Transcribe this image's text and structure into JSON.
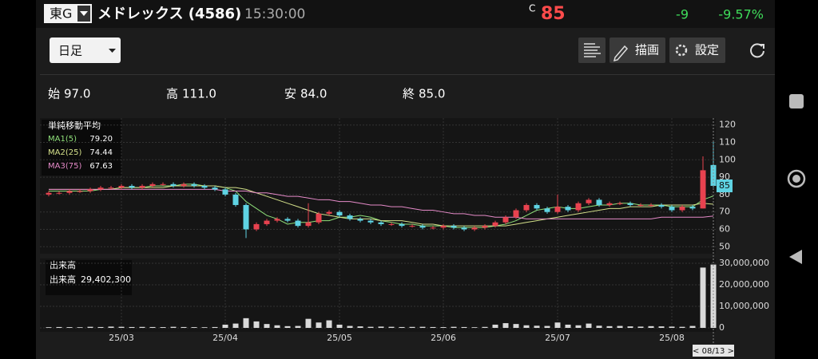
{
  "header": {
    "market": "東G",
    "name": "メドレックス (4586)",
    "time": "15:30:00",
    "price_prefix": "C",
    "price": "85",
    "change": "-9",
    "change_pct": "-9.57%"
  },
  "toolbar": {
    "period": "日足",
    "draw": "描画",
    "settings": "設定"
  },
  "ohlc": [
    {
      "label": "始",
      "value": "97.0"
    },
    {
      "label": "高",
      "value": "111.0"
    },
    {
      "label": "安",
      "value": "84.0"
    },
    {
      "label": "終",
      "value": "85.0"
    }
  ],
  "chart_data": {
    "type": "candlestick",
    "ma_title": "単純移動平均",
    "volume_title": "出来高",
    "volume_label": "出来高",
    "volume_current": "29,402,300",
    "cursor_label": "< 08/13 >",
    "categories": [
      null,
      null,
      null,
      null,
      null,
      null,
      null,
      "25/03",
      null,
      null,
      null,
      null,
      null,
      null,
      null,
      null,
      null,
      "25/04",
      null,
      null,
      null,
      null,
      null,
      null,
      null,
      null,
      null,
      null,
      "25/05",
      null,
      null,
      null,
      null,
      null,
      null,
      null,
      null,
      null,
      "25/06",
      null,
      null,
      null,
      null,
      null,
      null,
      null,
      null,
      null,
      null,
      "25/07",
      null,
      null,
      null,
      null,
      null,
      null,
      null,
      null,
      null,
      null,
      "25/08",
      null,
      null,
      null,
      null
    ],
    "open": [
      80,
      81,
      81,
      82,
      82,
      83,
      84,
      84,
      85,
      84,
      85,
      86,
      86,
      85,
      86,
      85,
      84,
      83,
      80,
      74,
      60,
      63,
      65,
      66,
      65,
      62,
      64,
      69,
      70,
      68,
      66,
      65,
      64,
      63,
      63,
      62,
      62,
      61,
      61,
      62,
      61,
      60,
      61,
      62,
      64,
      67,
      71,
      74,
      72,
      70,
      73,
      71,
      75,
      77,
      74,
      75,
      75,
      74,
      74,
      74,
      73,
      71,
      73,
      72,
      97
    ],
    "high": [
      82,
      82,
      83,
      83,
      84,
      85,
      85,
      86,
      86,
      86,
      87,
      87,
      87,
      87,
      87,
      86,
      85,
      84,
      81,
      75,
      64,
      66,
      67,
      67,
      66,
      75,
      70,
      71,
      71,
      69,
      67,
      66,
      65,
      64,
      64,
      63,
      63,
      62,
      63,
      63,
      62,
      62,
      63,
      65,
      68,
      72,
      75,
      75,
      73,
      80,
      74,
      76,
      78,
      78,
      76,
      76,
      76,
      75,
      75,
      75,
      74,
      74,
      74,
      102,
      111
    ],
    "low": [
      79,
      80,
      80,
      81,
      81,
      82,
      83,
      83,
      83,
      83,
      84,
      85,
      84,
      84,
      84,
      83,
      82,
      79,
      73,
      55,
      59,
      62,
      64,
      64,
      61,
      61,
      63,
      68,
      67,
      65,
      64,
      63,
      62,
      62,
      61,
      61,
      60,
      60,
      60,
      60,
      59,
      59,
      60,
      61,
      63,
      66,
      70,
      71,
      69,
      69,
      70,
      70,
      74,
      73,
      73,
      74,
      73,
      73,
      73,
      72,
      70,
      70,
      71,
      72,
      84
    ],
    "close": [
      81,
      81,
      82,
      82,
      83,
      84,
      84,
      85,
      84,
      85,
      86,
      86,
      85,
      86,
      85,
      84,
      83,
      80,
      74,
      60,
      63,
      65,
      66,
      65,
      62,
      64,
      69,
      70,
      68,
      66,
      65,
      64,
      63,
      63,
      62,
      62,
      61,
      61,
      62,
      61,
      60,
      61,
      62,
      64,
      67,
      71,
      74,
      72,
      70,
      73,
      71,
      75,
      77,
      74,
      75,
      75,
      74,
      74,
      74,
      73,
      71,
      73,
      72,
      94,
      85
    ],
    "volume": [
      300000,
      400000,
      350000,
      300000,
      500000,
      400000,
      600000,
      500000,
      400000,
      450000,
      400000,
      350000,
      500000,
      400000,
      350000,
      300000,
      400000,
      1500000,
      2000000,
      4500000,
      3000000,
      1800000,
      1200000,
      800000,
      900000,
      4200000,
      2500000,
      3500000,
      1500000,
      900000,
      700000,
      500000,
      600000,
      500000,
      400000,
      450000,
      500000,
      400000,
      350000,
      500000,
      400000,
      300000,
      450000,
      1500000,
      2200000,
      1800000,
      1200000,
      1000000,
      900000,
      2500000,
      1500000,
      1200000,
      2000000,
      1000000,
      800000,
      900000,
      700000,
      600000,
      800000,
      700000,
      600000,
      500000,
      900000,
      28000000,
      29402300
    ],
    "up_color": "#e8424f",
    "down_color": "#5fd3e3",
    "volume_color": "#d9d9d9",
    "series": [
      {
        "name": "MA1(5)",
        "current": "79.20",
        "color": "#8fe07a",
        "values": [
          82,
          82,
          82,
          82,
          82,
          83,
          83,
          84,
          84,
          84,
          85,
          85,
          85,
          86,
          86,
          85,
          85,
          84,
          82,
          76,
          72,
          68,
          66,
          63,
          64,
          64,
          65,
          65,
          67,
          67,
          68,
          67,
          65,
          64,
          63,
          63,
          62,
          62,
          62,
          61,
          61,
          61,
          61,
          62,
          63,
          65,
          68,
          71,
          72,
          73,
          72,
          72,
          73,
          74,
          74,
          75,
          75,
          74,
          74,
          74,
          73,
          73,
          73,
          77,
          79.2
        ]
      },
      {
        "name": "MA2(25)",
        "current": "74.44",
        "color": "#d4e08a",
        "values": [
          83,
          83,
          83,
          83,
          83,
          83,
          83,
          84,
          84,
          84,
          84,
          84,
          85,
          85,
          85,
          85,
          85,
          84,
          84,
          83,
          81,
          79,
          77,
          75,
          73,
          71,
          69,
          68,
          67,
          66,
          66,
          66,
          65,
          65,
          65,
          64,
          63,
          63,
          62,
          62,
          62,
          62,
          62,
          62,
          62,
          63,
          64,
          65,
          66,
          67,
          68,
          69,
          70,
          71,
          72,
          72,
          73,
          73,
          73,
          74,
          74,
          74,
          74,
          75,
          74.44
        ]
      },
      {
        "name": "MA3(75)",
        "current": "67.63",
        "color": "#e58ac8",
        "values": [
          83,
          83,
          83,
          83,
          83,
          83,
          83,
          83,
          83,
          83,
          83,
          83,
          83,
          83,
          83,
          83,
          83,
          82,
          82,
          82,
          81,
          81,
          80,
          79,
          79,
          78,
          77,
          77,
          76,
          76,
          75,
          74,
          74,
          73,
          73,
          72,
          71,
          71,
          70,
          69,
          69,
          68,
          68,
          67,
          67,
          67,
          66,
          66,
          66,
          66,
          66,
          66,
          66,
          66,
          66,
          66,
          66,
          66,
          66,
          67,
          67,
          67,
          67,
          67,
          67.63
        ]
      }
    ],
    "ylim": [
      46,
      124
    ],
    "yticks": [
      50,
      60,
      70,
      80,
      90,
      100,
      110,
      120
    ],
    "vlim": [
      0,
      30000000
    ],
    "vticks": [
      0,
      {
        "value": 10000000,
        "label": "10,000,000"
      },
      {
        "value": 20000000,
        "label": "20,000,000"
      },
      {
        "value": 30000000,
        "label": "30,000,000"
      }
    ],
    "grid": true
  }
}
